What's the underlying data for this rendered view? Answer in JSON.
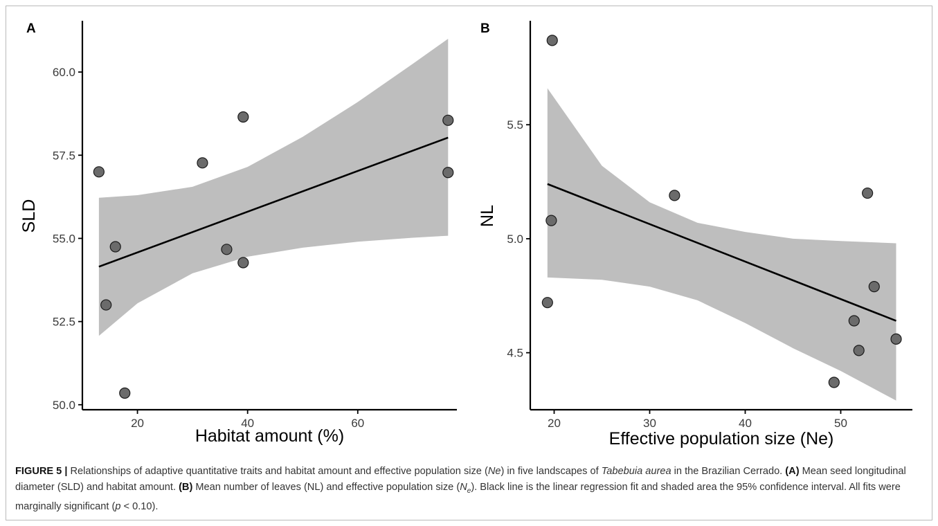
{
  "chart_data": [
    {
      "type": "scatter",
      "panel_label": "A",
      "xlabel": "Habitat amount (%)",
      "ylabel": "SLD",
      "xlim": [
        10,
        78
      ],
      "ylim": [
        49.85,
        61.5
      ],
      "xticks": [
        20,
        40,
        60
      ],
      "yticks": [
        50.0,
        52.5,
        55.0,
        57.5,
        60.0
      ],
      "ytick_labels": [
        "50.0",
        "52.5",
        "55.0",
        "57.5",
        "60.0"
      ],
      "points": [
        {
          "x": 13.0,
          "y": 57.0
        },
        {
          "x": 14.3,
          "y": 53.0
        },
        {
          "x": 16.0,
          "y": 54.75
        },
        {
          "x": 17.7,
          "y": 50.35
        },
        {
          "x": 31.8,
          "y": 57.27
        },
        {
          "x": 36.2,
          "y": 54.67
        },
        {
          "x": 39.2,
          "y": 58.65
        },
        {
          "x": 39.2,
          "y": 54.27
        },
        {
          "x": 76.4,
          "y": 58.55
        },
        {
          "x": 76.4,
          "y": 56.98
        }
      ],
      "fit": {
        "x": [
          13.0,
          76.4
        ],
        "y": [
          54.15,
          58.03
        ]
      },
      "ci": {
        "x": [
          13.0,
          20.0,
          30.0,
          40.0,
          50.0,
          60.0,
          70.0,
          76.4
        ],
        "lower": [
          52.07,
          53.05,
          53.95,
          54.45,
          54.72,
          54.9,
          55.02,
          55.08
        ],
        "upper": [
          56.22,
          56.3,
          56.55,
          57.15,
          58.05,
          59.1,
          60.25,
          61.0
        ]
      },
      "grid": false
    },
    {
      "type": "scatter",
      "panel_label": "B",
      "xlabel": "Effective population size (Ne)",
      "ylabel": "NL",
      "xlim": [
        17.5,
        57.5
      ],
      "ylim": [
        4.25,
        5.95
      ],
      "xticks": [
        20,
        30,
        40,
        50
      ],
      "yticks": [
        4.5,
        5.0,
        5.5
      ],
      "ytick_labels": [
        "4.5",
        "5.0",
        "5.5"
      ],
      "points": [
        {
          "x": 19.8,
          "y": 5.87
        },
        {
          "x": 19.7,
          "y": 5.08
        },
        {
          "x": 19.3,
          "y": 4.72
        },
        {
          "x": 32.6,
          "y": 5.19
        },
        {
          "x": 52.8,
          "y": 5.2
        },
        {
          "x": 53.5,
          "y": 4.79
        },
        {
          "x": 51.4,
          "y": 4.64
        },
        {
          "x": 51.9,
          "y": 4.51
        },
        {
          "x": 55.8,
          "y": 4.56
        },
        {
          "x": 49.3,
          "y": 4.37
        }
      ],
      "fit": {
        "x": [
          19.3,
          55.8
        ],
        "y": [
          5.24,
          4.64
        ]
      },
      "ci": {
        "x": [
          19.3,
          25.0,
          30.0,
          35.0,
          40.0,
          45.0,
          50.0,
          55.8
        ],
        "lower": [
          4.83,
          4.82,
          4.79,
          4.73,
          4.63,
          4.52,
          4.42,
          4.29
        ],
        "upper": [
          5.66,
          5.32,
          5.16,
          5.07,
          5.03,
          5.0,
          4.99,
          4.98
        ]
      },
      "grid": false
    }
  ],
  "colors": {
    "point_fill": "#6b6b6b",
    "point_stroke": "#1a1a1a",
    "ribbon": "#bebebe",
    "fit_line": "#000000",
    "axis": "#000000"
  },
  "caption": {
    "label": "FIGURE 5 |",
    "s1": " Relationships of adaptive quantitative traits and habitat amount and effective population size (",
    "s1_italic": "Ne",
    "s2": ") in five landscapes of ",
    "species": "Tabebuia aurea",
    "s3": " in the Brazilian Cerrado. ",
    "a_label": "(A)",
    "a_text": " Mean seed longitudinal diameter (SLD) and habitat amount. ",
    "b_label": "(B)",
    "b_text1": " Mean number of leaves (NL) and effective population size (",
    "ne_base": "N",
    "ne_sub": "e",
    "b_text2": "). Black line is the linear regression fit and shaded area the 95% confidence interval. All fits were marginally significant (",
    "p_italic": "p",
    "p_text": " < 0.10)."
  }
}
